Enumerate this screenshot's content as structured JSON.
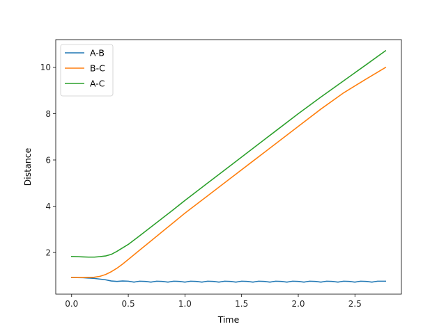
{
  "chart_data": {
    "type": "line",
    "title": "",
    "xlabel": "Time",
    "ylabel": "Distance",
    "xlim": [
      -0.14,
      2.91
    ],
    "ylim": [
      0.2,
      11.2
    ],
    "x_ticks": [
      0.0,
      0.5,
      1.0,
      1.5,
      2.0,
      2.5
    ],
    "x_tick_labels": [
      "0.0",
      "0.5",
      "1.0",
      "1.5",
      "2.0",
      "2.5"
    ],
    "y_ticks": [
      2,
      4,
      6,
      8,
      10
    ],
    "y_tick_labels": [
      "2",
      "4",
      "6",
      "8",
      "10"
    ],
    "grid": false,
    "legend_position": "top-left",
    "series": [
      {
        "name": "A-B",
        "color": "#1f77b4",
        "x": [
          0.0,
          0.1,
          0.2,
          0.3,
          0.35,
          0.4,
          0.45,
          0.5,
          0.55,
          0.6,
          0.65,
          0.7,
          0.75,
          0.8,
          0.85,
          0.9,
          0.95,
          1.0,
          1.05,
          1.1,
          1.15,
          1.2,
          1.25,
          1.3,
          1.35,
          1.4,
          1.45,
          1.5,
          1.55,
          1.6,
          1.65,
          1.7,
          1.75,
          1.8,
          1.85,
          1.9,
          1.95,
          2.0,
          2.05,
          2.1,
          2.15,
          2.2,
          2.25,
          2.3,
          2.35,
          2.4,
          2.45,
          2.5,
          2.55,
          2.6,
          2.65,
          2.7,
          2.77
        ],
        "y": [
          0.92,
          0.91,
          0.88,
          0.82,
          0.77,
          0.75,
          0.77,
          0.76,
          0.72,
          0.76,
          0.75,
          0.72,
          0.76,
          0.75,
          0.72,
          0.76,
          0.75,
          0.72,
          0.76,
          0.75,
          0.72,
          0.76,
          0.75,
          0.72,
          0.76,
          0.75,
          0.72,
          0.76,
          0.75,
          0.72,
          0.76,
          0.75,
          0.72,
          0.76,
          0.75,
          0.72,
          0.76,
          0.75,
          0.72,
          0.76,
          0.75,
          0.72,
          0.76,
          0.75,
          0.72,
          0.76,
          0.75,
          0.72,
          0.76,
          0.75,
          0.72,
          0.76,
          0.76
        ]
      },
      {
        "name": "B-C",
        "color": "#ff7f0e",
        "x": [
          0.0,
          0.1,
          0.2,
          0.25,
          0.3,
          0.35,
          0.4,
          0.45,
          0.5,
          0.6,
          0.7,
          0.8,
          0.9,
          1.0,
          1.2,
          1.4,
          1.6,
          1.8,
          2.0,
          2.2,
          2.4,
          2.6,
          2.77
        ],
        "y": [
          0.92,
          0.92,
          0.93,
          0.97,
          1.05,
          1.17,
          1.32,
          1.5,
          1.7,
          2.1,
          2.5,
          2.9,
          3.3,
          3.7,
          4.45,
          5.2,
          5.95,
          6.7,
          7.45,
          8.2,
          8.9,
          9.5,
          10.0
        ]
      },
      {
        "name": "A-C",
        "color": "#2ca02c",
        "x": [
          0.0,
          0.1,
          0.15,
          0.2,
          0.25,
          0.3,
          0.35,
          0.4,
          0.45,
          0.5,
          0.6,
          0.7,
          0.8,
          0.9,
          1.0,
          1.2,
          1.4,
          1.6,
          1.8,
          2.0,
          2.2,
          2.4,
          2.6,
          2.77
        ],
        "y": [
          1.83,
          1.81,
          1.8,
          1.8,
          1.82,
          1.85,
          1.92,
          2.05,
          2.2,
          2.35,
          2.72,
          3.1,
          3.48,
          3.86,
          4.25,
          5.0,
          5.75,
          6.5,
          7.25,
          8.0,
          8.72,
          9.42,
          10.12,
          10.72
        ]
      }
    ]
  }
}
